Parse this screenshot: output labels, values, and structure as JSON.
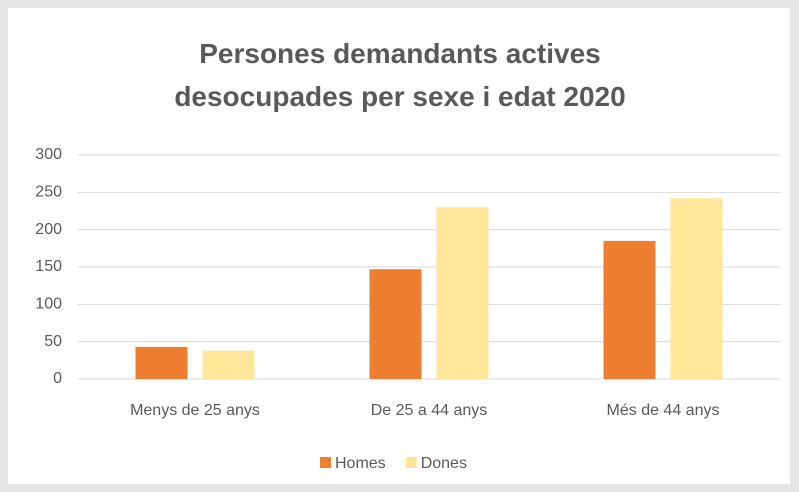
{
  "chart_data": {
    "type": "bar",
    "title": "Persones demandants actives desocupades per sexe i edat 2020",
    "categories": [
      "Menys de 25 anys",
      "De 25 a 44 anys",
      "Més de 44 anys"
    ],
    "series": [
      {
        "name": "Homes",
        "color": "#ed7d31",
        "values": [
          43,
          147,
          185
        ]
      },
      {
        "name": "Dones",
        "color": "#ffe699",
        "values": [
          38,
          230,
          242
        ]
      }
    ],
    "ylim": [
      0,
      300
    ],
    "yticks": [
      0,
      50,
      100,
      150,
      200,
      250,
      300
    ],
    "grid": true,
    "legend": "bottom"
  }
}
